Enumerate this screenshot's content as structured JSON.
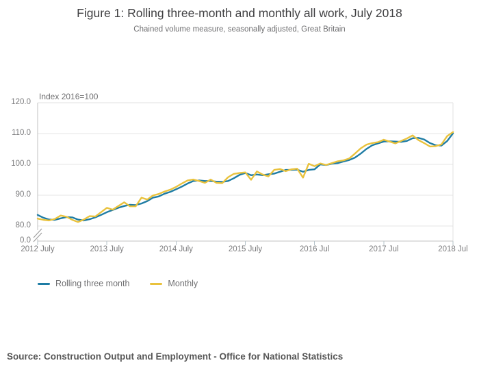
{
  "header": {
    "title": "Figure 1: Rolling three-month and monthly all work, July 2018",
    "subtitle": "Chained volume measure, seasonally adjusted, Great Britain"
  },
  "chart_data": {
    "type": "line",
    "title": "Figure 1: Rolling three-month and monthly all work, July 2018",
    "subtitle": "Chained volume measure, seasonally adjusted, Great Britain",
    "y_axis_label": "Index 2016=100",
    "x_start": "2012 July",
    "x_end": "2018 July",
    "x_interval": "monthly",
    "x_tick_labels": [
      "2012 July",
      "2013 July",
      "2014 July",
      "2015 July",
      "2016 Jul",
      "2017 Jul",
      "2018 Jul"
    ],
    "x_tick_month_indexes": [
      0,
      12,
      24,
      36,
      48,
      60,
      72
    ],
    "y_tick_labels": [
      "120.0",
      "110.0",
      "100.0",
      "90.0",
      "80.0",
      "0.0"
    ],
    "y_gridline_values": [
      120,
      110,
      100,
      90,
      80
    ],
    "ylim_display": [
      80,
      120
    ],
    "axis_break": true,
    "grid": "horizontal",
    "legend_position": "bottom-left",
    "series": [
      {
        "name": "Rolling three month",
        "color": "#1e7ca4",
        "values": [
          83.6,
          82.7,
          82.1,
          82.0,
          82.5,
          82.9,
          82.8,
          82.1,
          81.8,
          82.2,
          82.8,
          83.6,
          84.5,
          85.2,
          85.9,
          86.5,
          86.9,
          86.8,
          87.3,
          88.1,
          89.2,
          89.6,
          90.5,
          91.1,
          91.9,
          92.8,
          93.8,
          94.6,
          94.8,
          94.6,
          94.6,
          94.4,
          94.3,
          94.6,
          95.5,
          96.6,
          97.2,
          96.5,
          96.7,
          96.5,
          96.8,
          97.0,
          97.6,
          98.2,
          98.2,
          98.3,
          97.6,
          98.2,
          98.4,
          100.0,
          99.8,
          100.2,
          100.4,
          100.9,
          101.4,
          102.2,
          103.5,
          105.0,
          106.2,
          106.8,
          107.4,
          107.5,
          107.4,
          107.3,
          107.6,
          108.5,
          108.6,
          108.1,
          106.9,
          106.2,
          106.1,
          107.6,
          110.1
        ]
      },
      {
        "name": "Monthly",
        "color": "#e9c23d",
        "values": [
          82.4,
          82.0,
          81.8,
          82.3,
          83.4,
          83.0,
          82.0,
          81.3,
          82.1,
          83.2,
          83.1,
          84.5,
          85.9,
          85.3,
          86.5,
          87.7,
          86.4,
          86.4,
          89.2,
          88.6,
          89.9,
          90.4,
          91.2,
          91.8,
          92.7,
          93.8,
          94.8,
          95.1,
          94.6,
          94.0,
          95.1,
          94.0,
          93.9,
          95.8,
          96.9,
          97.2,
          97.4,
          95.0,
          97.7,
          96.7,
          96.1,
          98.2,
          98.5,
          97.8,
          98.4,
          98.6,
          95.7,
          100.2,
          99.4,
          100.3,
          99.8,
          100.4,
          101.0,
          101.3,
          101.9,
          103.5,
          105.2,
          106.4,
          106.9,
          107.2,
          108.0,
          107.4,
          106.8,
          107.6,
          108.4,
          109.4,
          107.9,
          106.9,
          105.8,
          105.9,
          106.5,
          109.2,
          110.5
        ]
      }
    ]
  },
  "colors": {
    "gridline": "#e4e4e4",
    "plot_border": "#e0e0e0",
    "axis_line": "#c2c2c2",
    "tick_mark": "#b5c3ca",
    "break_mark": "#999999"
  },
  "source": {
    "text": "Source: Construction Output and Employment - Office for National Statistics"
  }
}
